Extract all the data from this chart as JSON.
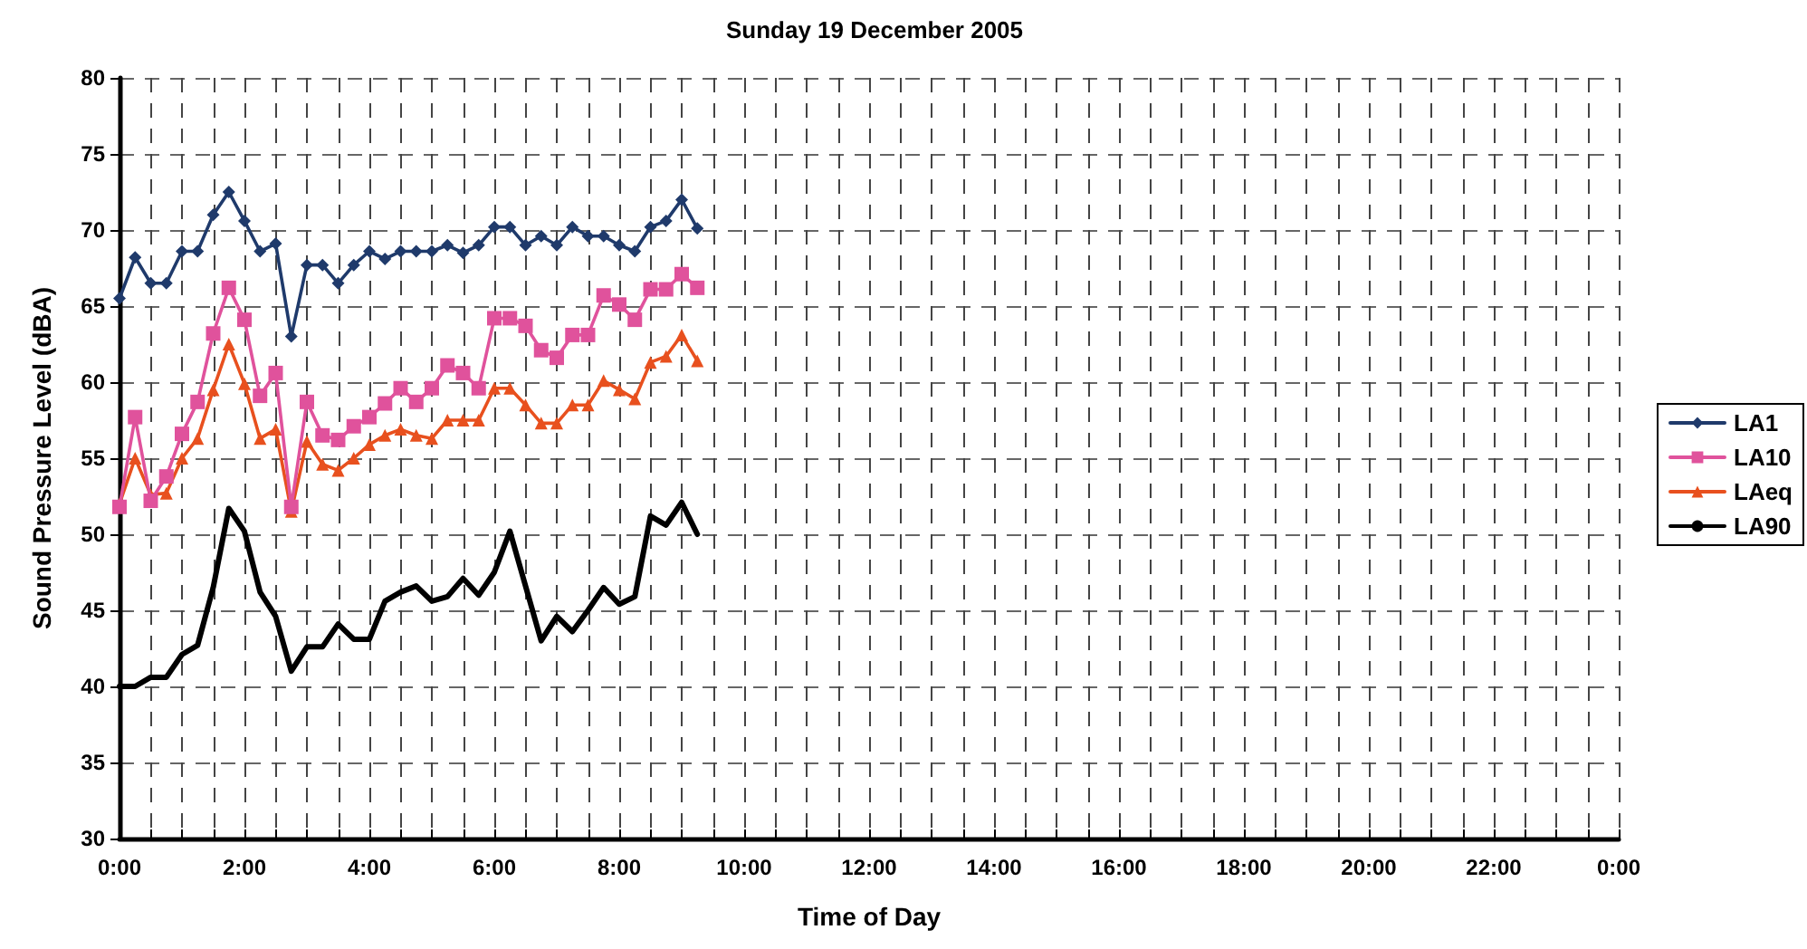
{
  "chart_data": {
    "type": "line",
    "title": "Sunday 19 December 2005",
    "xlabel": "Time of Day",
    "ylabel": "Sound Pressure Level (dBA)",
    "x": [
      0,
      0.25,
      0.5,
      0.75,
      1,
      1.25,
      1.5,
      1.75,
      2,
      2.25,
      2.5,
      2.75,
      3,
      3.25,
      3.5,
      3.75,
      4,
      4.25,
      4.5,
      4.75,
      5,
      5.25,
      5.5,
      5.75,
      6,
      6.25,
      6.5,
      6.75,
      7,
      7.25,
      7.5,
      7.75,
      8,
      8.25,
      8.5,
      8.75,
      9,
      9.25
    ],
    "series": [
      {
        "name": "LA1",
        "color": "#1f3a6b",
        "marker": "diamond",
        "values": [
          65.5,
          68.2,
          66.5,
          66.5,
          68.6,
          68.6,
          71.0,
          72.5,
          70.6,
          68.6,
          69.1,
          63.0,
          67.7,
          67.7,
          66.5,
          67.7,
          68.6,
          68.1,
          68.6,
          68.6,
          68.6,
          69.0,
          68.5,
          69.0,
          70.2,
          70.2,
          69.0,
          69.6,
          69.0,
          70.2,
          69.6,
          69.6,
          69.0,
          68.6,
          70.2,
          70.6,
          72.0,
          70.1
        ]
      },
      {
        "name": "LA10",
        "color": "#e0529c",
        "marker": "square",
        "values": [
          51.8,
          57.7,
          52.2,
          53.8,
          56.6,
          58.7,
          63.2,
          66.2,
          64.1,
          59.1,
          60.6,
          51.8,
          58.7,
          56.5,
          56.2,
          57.1,
          57.7,
          58.6,
          59.6,
          58.7,
          59.6,
          61.1,
          60.6,
          59.6,
          64.2,
          64.2,
          63.7,
          62.1,
          61.6,
          63.1,
          63.1,
          65.7,
          65.1,
          64.1,
          66.1,
          66.1,
          67.1,
          66.2
        ]
      },
      {
        "name": "LAeq",
        "color": "#e8501e",
        "marker": "triangle",
        "values": [
          52.0,
          55.0,
          52.6,
          52.7,
          55.0,
          56.3,
          59.5,
          62.5,
          59.9,
          56.3,
          56.9,
          51.5,
          56.1,
          54.6,
          54.2,
          55.0,
          55.9,
          56.5,
          56.9,
          56.5,
          56.3,
          57.5,
          57.5,
          57.5,
          59.6,
          59.6,
          58.5,
          57.3,
          57.3,
          58.5,
          58.5,
          60.1,
          59.5,
          58.9,
          61.3,
          61.7,
          63.1,
          61.4
        ]
      },
      {
        "name": "LA90",
        "color": "#000000",
        "marker": "none",
        "values": [
          40.0,
          40.0,
          40.6,
          40.6,
          42.1,
          42.7,
          46.5,
          51.7,
          50.2,
          46.2,
          44.6,
          41.0,
          42.6,
          42.6,
          44.1,
          43.1,
          43.1,
          45.6,
          46.2,
          46.6,
          45.6,
          45.9,
          47.1,
          46.0,
          47.5,
          50.2,
          46.6,
          43.0,
          44.6,
          43.6,
          45.0,
          46.5,
          45.4,
          45.9,
          51.2,
          50.6,
          52.1,
          50.0
        ]
      }
    ],
    "xlim": [
      0,
      24
    ],
    "xticks": [
      {
        "value": 0,
        "label": "0:00"
      },
      {
        "value": 0.5,
        "label": null
      },
      {
        "value": 1,
        "label": null
      },
      {
        "value": 1.5,
        "label": null
      },
      {
        "value": 2,
        "label": "2:00"
      },
      {
        "value": 2.5,
        "label": null
      },
      {
        "value": 3,
        "label": null
      },
      {
        "value": 3.5,
        "label": null
      },
      {
        "value": 4,
        "label": "4:00"
      },
      {
        "value": 4.5,
        "label": null
      },
      {
        "value": 5,
        "label": null
      },
      {
        "value": 5.5,
        "label": null
      },
      {
        "value": 6,
        "label": "6:00"
      },
      {
        "value": 6.5,
        "label": null
      },
      {
        "value": 7,
        "label": null
      },
      {
        "value": 7.5,
        "label": null
      },
      {
        "value": 8,
        "label": "8:00"
      },
      {
        "value": 8.5,
        "label": null
      },
      {
        "value": 9,
        "label": null
      },
      {
        "value": 9.5,
        "label": null
      },
      {
        "value": 10,
        "label": "10:00"
      },
      {
        "value": 10.5,
        "label": null
      },
      {
        "value": 11,
        "label": null
      },
      {
        "value": 11.5,
        "label": null
      },
      {
        "value": 12,
        "label": "12:00"
      },
      {
        "value": 12.5,
        "label": null
      },
      {
        "value": 13,
        "label": null
      },
      {
        "value": 13.5,
        "label": null
      },
      {
        "value": 14,
        "label": "14:00"
      },
      {
        "value": 14.5,
        "label": null
      },
      {
        "value": 15,
        "label": null
      },
      {
        "value": 15.5,
        "label": null
      },
      {
        "value": 16,
        "label": "16:00"
      },
      {
        "value": 16.5,
        "label": null
      },
      {
        "value": 17,
        "label": null
      },
      {
        "value": 17.5,
        "label": null
      },
      {
        "value": 18,
        "label": "18:00"
      },
      {
        "value": 18.5,
        "label": null
      },
      {
        "value": 19,
        "label": null
      },
      {
        "value": 19.5,
        "label": null
      },
      {
        "value": 20,
        "label": "20:00"
      },
      {
        "value": 20.5,
        "label": null
      },
      {
        "value": 21,
        "label": null
      },
      {
        "value": 21.5,
        "label": null
      },
      {
        "value": 22,
        "label": "22:00"
      },
      {
        "value": 22.5,
        "label": null
      },
      {
        "value": 23,
        "label": null
      },
      {
        "value": 23.5,
        "label": null
      },
      {
        "value": 24,
        "label": "0:00"
      }
    ],
    "ylim": [
      30,
      80
    ],
    "yticks": [
      30,
      35,
      40,
      45,
      50,
      55,
      60,
      65,
      70,
      75,
      80
    ],
    "grid": true,
    "legend": "right",
    "line_style": "solid"
  }
}
